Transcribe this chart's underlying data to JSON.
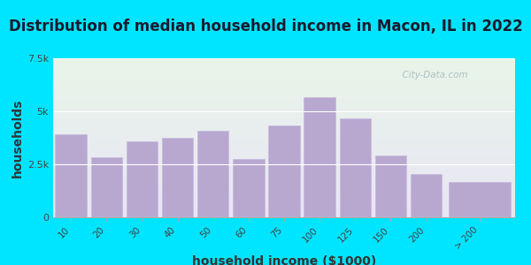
{
  "title": "Distribution of median household income in Macon, IL in 2022",
  "xlabel": "household income ($1000)",
  "ylabel": "households",
  "categories": [
    "10",
    "20",
    "30",
    "40",
    "50",
    "60",
    "75",
    "100",
    "125",
    "150",
    "200",
    "> 200"
  ],
  "values": [
    3900,
    2850,
    3600,
    3750,
    4100,
    2750,
    4350,
    5650,
    4650,
    2900,
    2050,
    1650
  ],
  "bar_widths": [
    1,
    1,
    1,
    1,
    1,
    1,
    1,
    1,
    1,
    1,
    1,
    2
  ],
  "bar_lefts": [
    0,
    1,
    2,
    3,
    4,
    5,
    6,
    7,
    8,
    9,
    10,
    11
  ],
  "bar_color": "#b8a8d0",
  "bar_edge_color": "#c8b8e0",
  "background_outer": "#00e5ff",
  "background_inner_top": "#e8f5e8",
  "background_inner_bottom": "#e8e5f5",
  "ylim": [
    0,
    7500
  ],
  "yticks": [
    0,
    2500,
    5000,
    7500
  ],
  "ytick_labels": [
    "0",
    "2.5k",
    "5k",
    "7.5k"
  ],
  "title_fontsize": 12,
  "axis_label_fontsize": 10,
  "watermark": "  City-Data.com"
}
